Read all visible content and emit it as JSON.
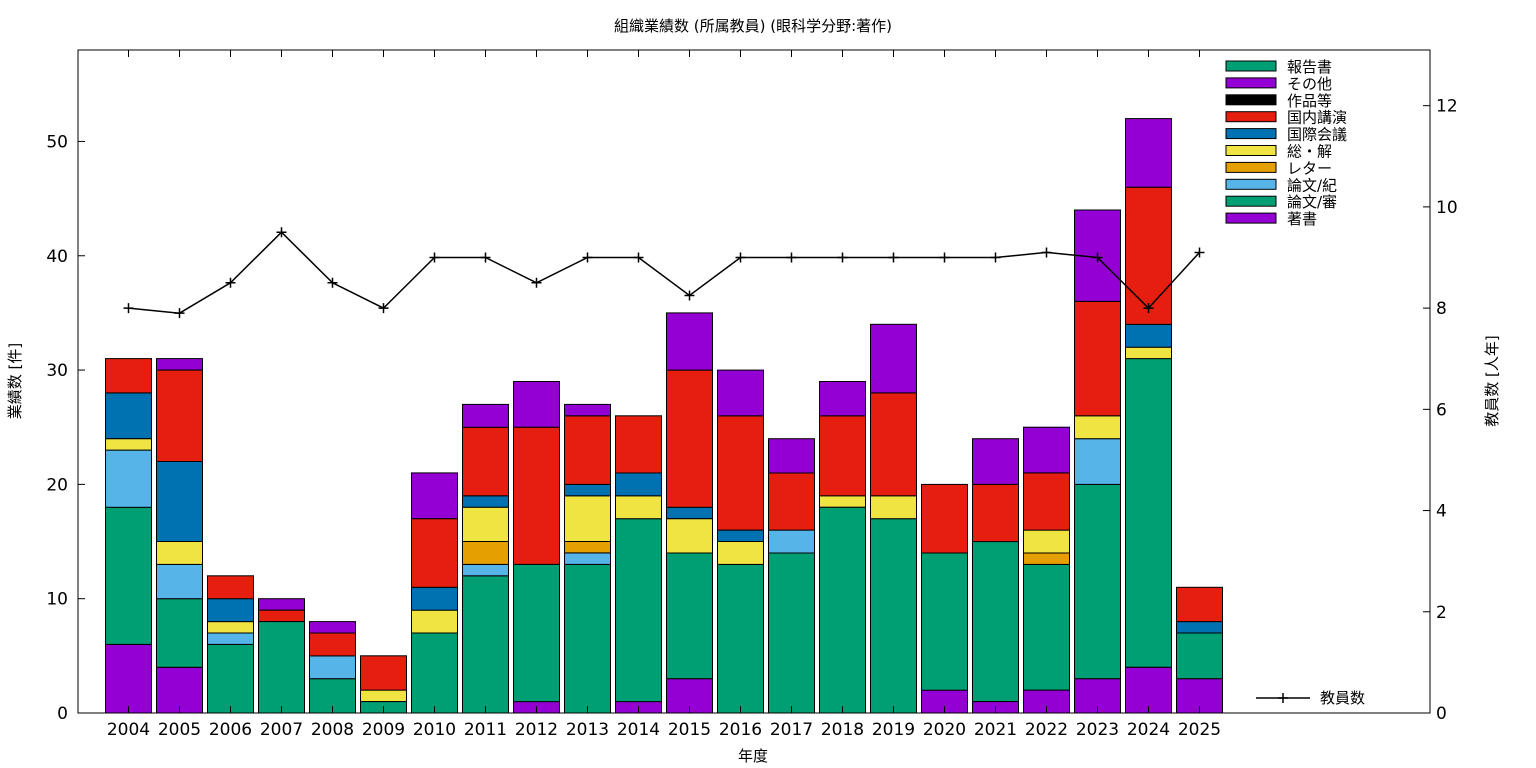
{
  "chart_data": {
    "type": "bar",
    "stacked": true,
    "title": "組織業績数 (所属教員) (眼科学分野:著作)",
    "xlabel": "年度",
    "ylabel": "業績数 [件]",
    "y2label": "教員数 [人年]",
    "categories": [
      "2004",
      "2005",
      "2006",
      "2007",
      "2008",
      "2009",
      "2010",
      "2011",
      "2012",
      "2013",
      "2014",
      "2015",
      "2016",
      "2017",
      "2018",
      "2019",
      "2020",
      "2021",
      "2022",
      "2023",
      "2024",
      "2025"
    ],
    "ylim": [
      0,
      58
    ],
    "y2lim": [
      0,
      13.1
    ],
    "yticks": [
      0,
      10,
      20,
      30,
      40,
      50
    ],
    "y2ticks": [
      0,
      2,
      4,
      6,
      8,
      10,
      12
    ],
    "grid": false,
    "legend_position": "top-right",
    "series": [
      {
        "name": "著書",
        "color": "#9400d3",
        "values": [
          6,
          4,
          0,
          0,
          0,
          0,
          0,
          0,
          1,
          0,
          1,
          3,
          0,
          0,
          0,
          0,
          2,
          1,
          2,
          3,
          4,
          3
        ]
      },
      {
        "name": "論文/審",
        "color": "#009e73",
        "values": [
          12,
          6,
          6,
          8,
          3,
          1,
          7,
          12,
          12,
          13,
          16,
          11,
          13,
          14,
          18,
          17,
          12,
          14,
          11,
          17,
          27,
          4
        ]
      },
      {
        "name": "論文/紀",
        "color": "#56b4e9",
        "values": [
          5,
          3,
          1,
          0,
          2,
          0,
          0,
          1,
          0,
          1,
          0,
          0,
          0,
          2,
          0,
          0,
          0,
          0,
          0,
          4,
          0,
          0
        ]
      },
      {
        "name": "レター",
        "color": "#e69f00",
        "values": [
          0,
          0,
          0,
          0,
          0,
          0,
          0,
          2,
          0,
          1,
          0,
          0,
          0,
          0,
          0,
          0,
          0,
          0,
          1,
          0,
          0,
          0
        ]
      },
      {
        "name": "総・解",
        "color": "#f0e442",
        "values": [
          1,
          2,
          1,
          0,
          0,
          1,
          2,
          3,
          0,
          4,
          2,
          3,
          2,
          0,
          1,
          2,
          0,
          0,
          2,
          2,
          1,
          0
        ]
      },
      {
        "name": "国際会議",
        "color": "#0072b2",
        "values": [
          4,
          7,
          2,
          0,
          0,
          0,
          2,
          1,
          0,
          1,
          2,
          1,
          1,
          0,
          0,
          0,
          0,
          0,
          0,
          0,
          2,
          1
        ]
      },
      {
        "name": "国内講演",
        "color": "#e51e10",
        "values": [
          3,
          8,
          2,
          1,
          2,
          3,
          6,
          6,
          12,
          6,
          5,
          12,
          10,
          5,
          7,
          9,
          6,
          5,
          5,
          10,
          12,
          3
        ]
      },
      {
        "name": "作品等",
        "color": "#000000",
        "values": [
          0,
          0,
          0,
          0,
          0,
          0,
          0,
          0,
          0,
          0,
          0,
          0,
          0,
          0,
          0,
          0,
          0,
          0,
          0,
          0,
          0,
          0
        ]
      },
      {
        "name": "その他",
        "color": "#9400d3",
        "values": [
          0,
          1,
          0,
          1,
          1,
          0,
          4,
          2,
          4,
          1,
          0,
          5,
          4,
          3,
          3,
          6,
          0,
          4,
          4,
          8,
          6,
          0
        ]
      },
      {
        "name": "報告書",
        "color": "#009e73",
        "values": [
          0,
          0,
          0,
          0,
          0,
          0,
          0,
          0,
          0,
          0,
          0,
          0,
          0,
          0,
          0,
          0,
          0,
          0,
          0,
          0,
          0,
          0
        ]
      }
    ],
    "legend_order": [
      "報告書",
      "その他",
      "作品等",
      "国内講演",
      "国際会議",
      "総・解",
      "レター",
      "論文/紀",
      "論文/審",
      "著書"
    ],
    "line_series": {
      "name": "教員数",
      "axis": "y2",
      "color": "#000000",
      "values": [
        8.0,
        7.9,
        8.5,
        9.5,
        8.5,
        8.0,
        9.0,
        9.0,
        8.5,
        9.0,
        9.0,
        8.25,
        9.0,
        9.0,
        9.0,
        9.0,
        9.0,
        9.0,
        9.1,
        9.0,
        8.0,
        9.1
      ]
    }
  }
}
